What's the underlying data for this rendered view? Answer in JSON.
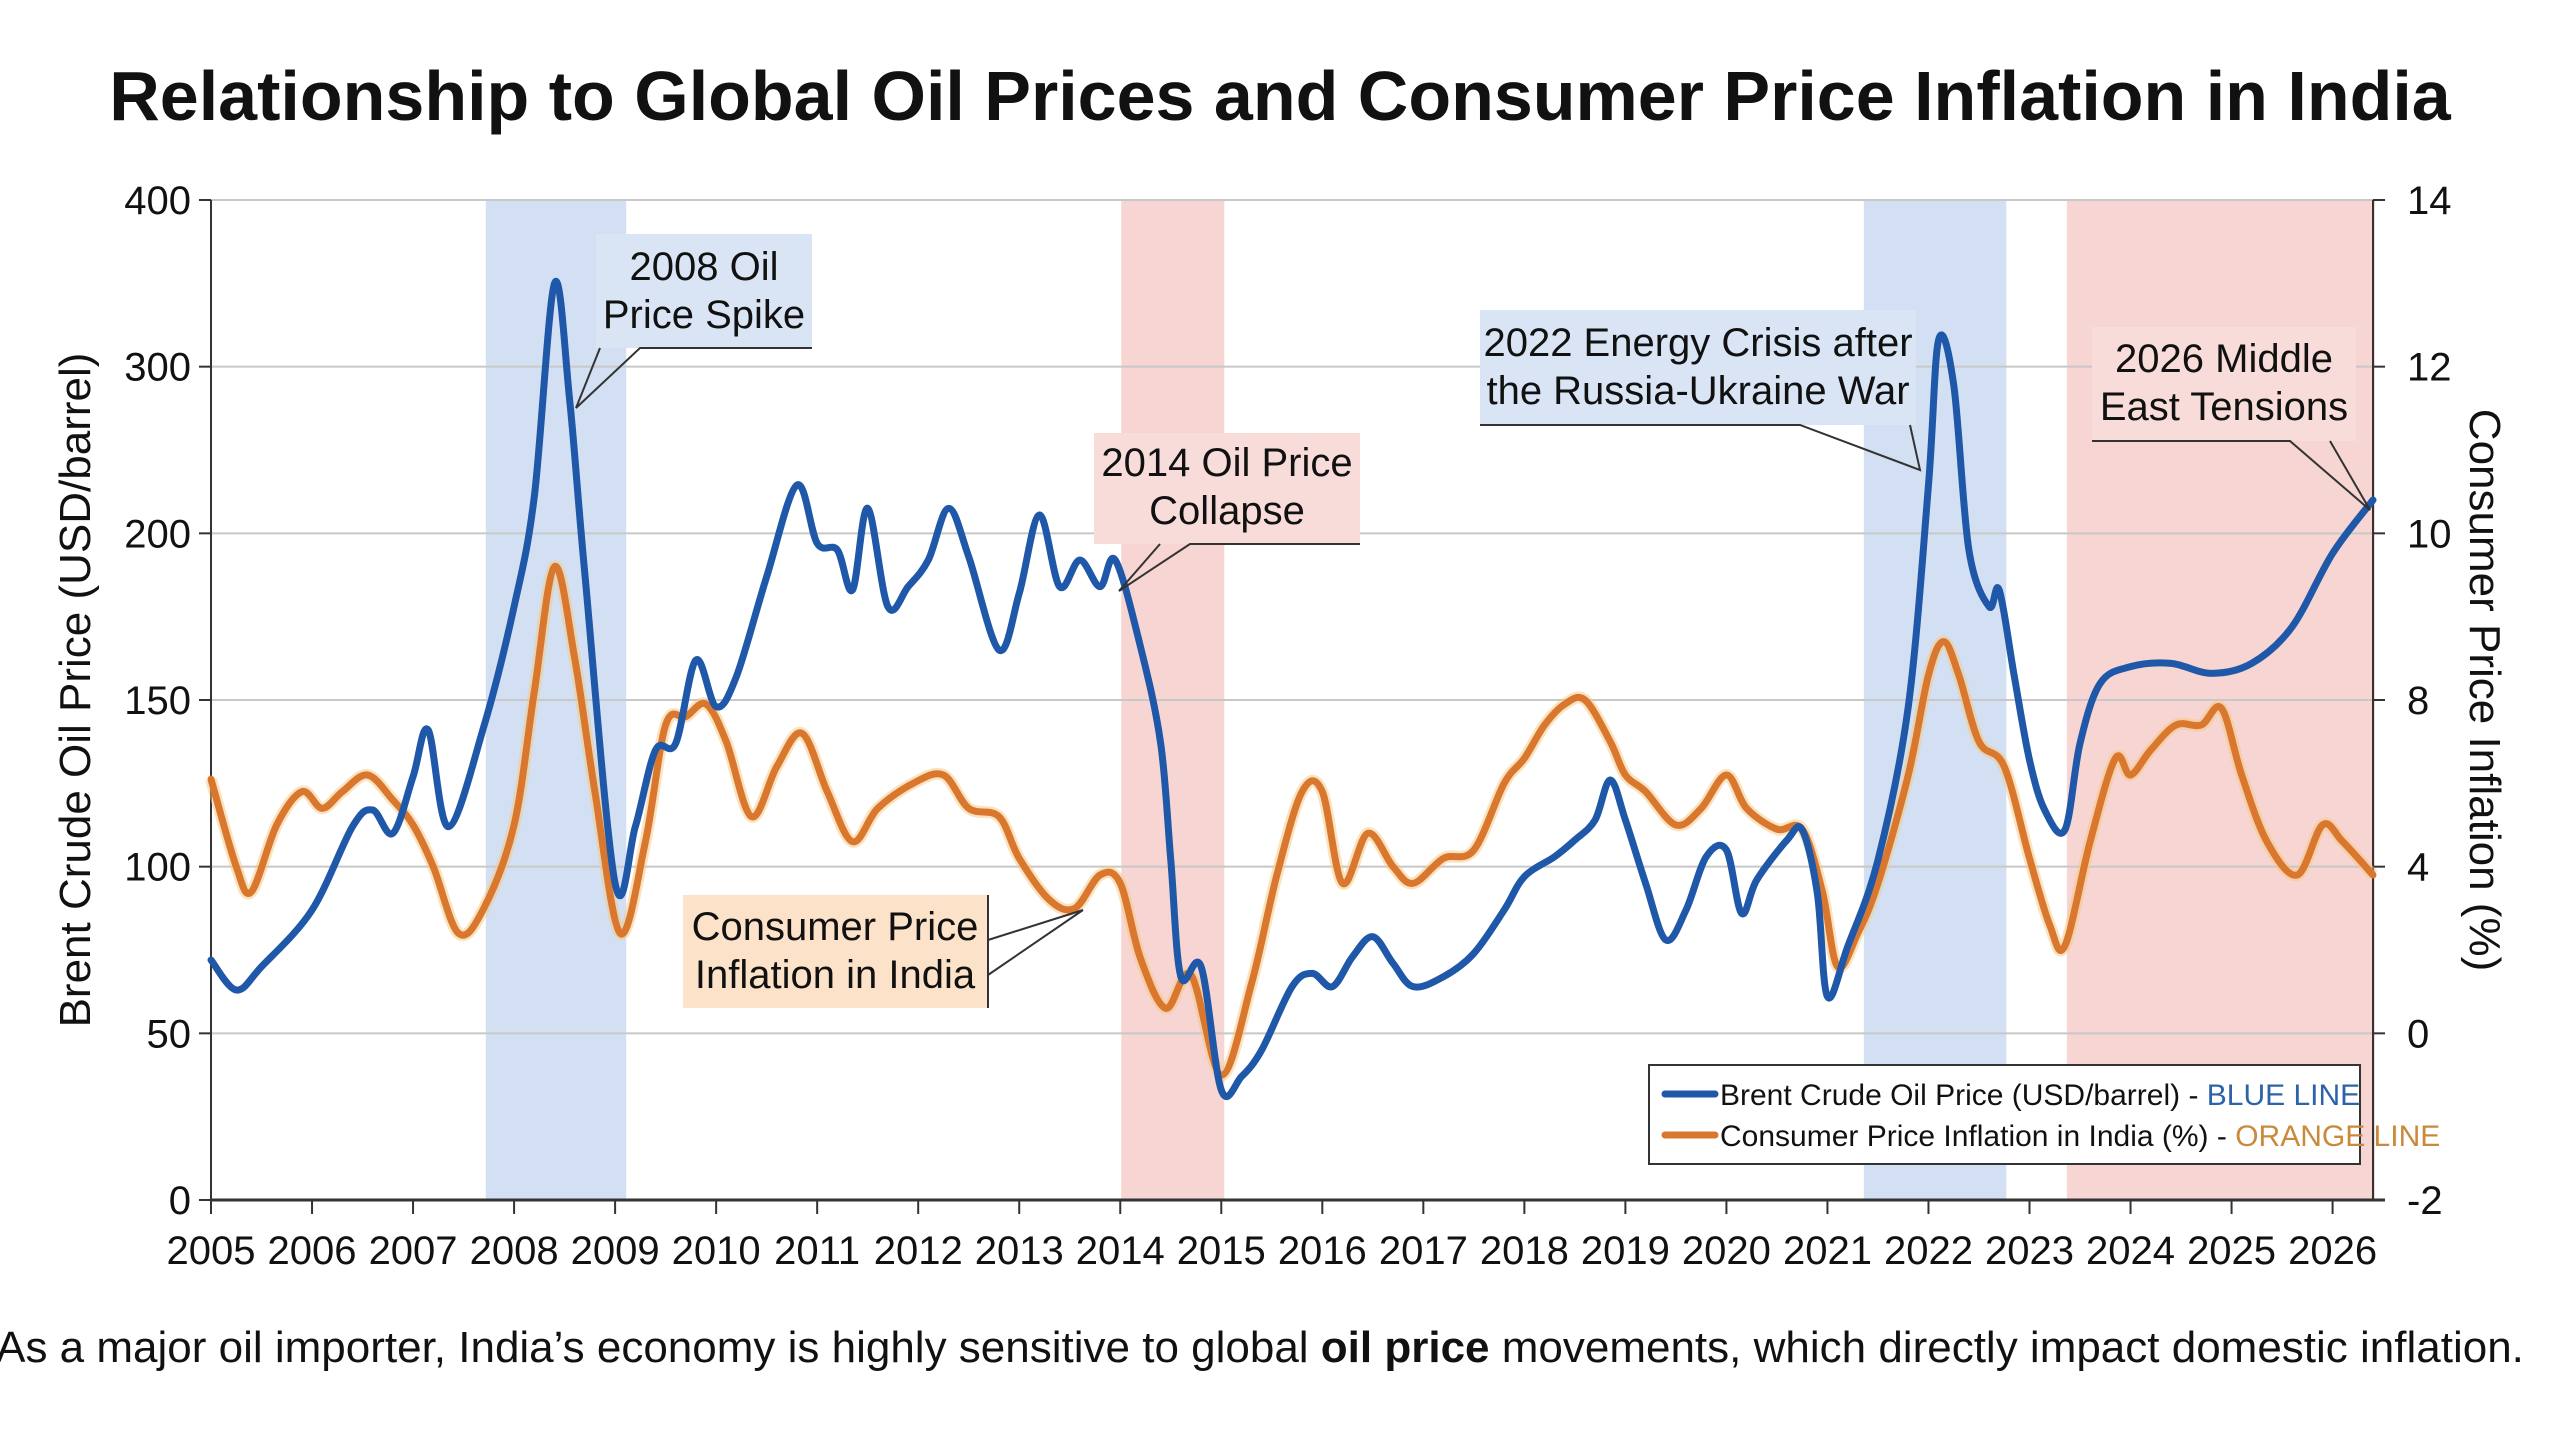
{
  "chart_data": {
    "type": "line",
    "title": "Relationship to Global Oil Prices and Consumer Price Inflation in India",
    "caption": {
      "before": "As a major oil importer, India’s economy is highly sensitive to global ",
      "bold": "oil price",
      "after": " movements, which directly impact domestic inflation."
    },
    "xlim": [
      2005,
      2026.4
    ],
    "x_ticks": [
      "2005",
      "2006",
      "2007",
      "2008",
      "2009",
      "2010",
      "2011",
      "2012",
      "2013",
      "2014",
      "2015",
      "2016",
      "2017",
      "2018",
      "2019",
      "2020",
      "2021",
      "2022",
      "2023",
      "2024",
      "2025",
      "2026"
    ],
    "y_left": {
      "label": "Brent Crude Oil Price (USD/barrel)",
      "ticks": [
        400,
        300,
        200,
        150,
        100,
        50,
        0
      ],
      "scale": "non-uniform (ticks evenly spaced)"
    },
    "y_right": {
      "label": "Consumer Price Inflation (%)",
      "ticks": [
        14,
        12,
        10,
        8,
        4,
        0,
        -2
      ],
      "scale": "non-uniform (ticks evenly spaced)"
    },
    "grid": true,
    "legend": {
      "placement": "bottom-right",
      "entries": [
        {
          "text": "Brent Crude Oil Price (USD/barrel) - ",
          "tag": "BLUE LINE"
        },
        {
          "text": "Consumer Price Inflation in India (%) - ",
          "tag": "ORANGE LINE"
        }
      ]
    },
    "colors": {
      "oil": "#1f58a8",
      "cpi": "#d9772f",
      "band_blue": "#d3e0f3",
      "band_red": "#f6d5d3",
      "ann_blue": "#d9e5f5",
      "ann_red": "#f8dcda",
      "ann_orange": "#fbe2c9"
    },
    "shaded_periods": [
      {
        "from": 2007.72,
        "to": 2009.11,
        "color": "blue"
      },
      {
        "from": 2014.01,
        "to": 2015.03,
        "color": "red"
      },
      {
        "from": 2021.36,
        "to": 2022.77,
        "color": "blue"
      },
      {
        "from": 2023.37,
        "to": 2026.42,
        "color": "red"
      }
    ],
    "annotations": [
      {
        "lines": [
          "2008 Oil",
          "Price Spike"
        ]
      },
      {
        "lines": [
          "2014 Oil Price",
          "Collapse"
        ]
      },
      {
        "lines": [
          "2022 Energy Crisis after",
          "the Russia-Ukraine War"
        ]
      },
      {
        "lines": [
          "2026 Middle",
          "East Tensions"
        ]
      },
      {
        "lines": [
          "Consumer Price",
          "Inflation in India"
        ]
      }
    ],
    "series": [
      {
        "name": "Brent Crude Oil Price (USD/barrel)",
        "axis": "left",
        "x": [
          2005.0,
          2005.25,
          2005.5,
          2006.0,
          2006.4,
          2006.6,
          2006.8,
          2007.0,
          2007.15,
          2007.35,
          2007.7,
          2008.0,
          2008.2,
          2008.4,
          2008.55,
          2008.7,
          2009.0,
          2009.2,
          2009.4,
          2009.6,
          2009.8,
          2010.0,
          2010.2,
          2010.5,
          2010.8,
          2011.0,
          2011.2,
          2011.35,
          2011.5,
          2011.7,
          2011.9,
          2012.1,
          2012.3,
          2012.5,
          2012.8,
          2013.0,
          2013.2,
          2013.4,
          2013.6,
          2013.8,
          2013.95,
          2014.2,
          2014.4,
          2014.5,
          2014.6,
          2014.8,
          2015.0,
          2015.2,
          2015.4,
          2015.7,
          2015.9,
          2016.1,
          2016.3,
          2016.5,
          2016.7,
          2016.9,
          2017.2,
          2017.5,
          2017.8,
          2018.0,
          2018.3,
          2018.5,
          2018.7,
          2018.85,
          2019.0,
          2019.2,
          2019.4,
          2019.6,
          2019.8,
          2020.0,
          2020.15,
          2020.3,
          2020.6,
          2020.75,
          2020.9,
          2021.0,
          2021.2,
          2021.5,
          2021.8,
          2022.0,
          2022.1,
          2022.25,
          2022.4,
          2022.6,
          2022.7,
          2022.85,
          2023.0,
          2023.15,
          2023.35,
          2023.5,
          2023.7,
          2024.0,
          2024.4,
          2024.8,
          2025.2,
          2025.6,
          2026.0,
          2026.4
        ],
        "y": [
          72,
          63,
          70,
          87,
          112,
          117,
          110,
          127,
          141,
          112,
          142,
          178,
          222,
          350,
          280,
          188,
          95,
          112,
          135,
          137,
          162,
          148,
          157,
          187,
          229,
          197,
          195,
          183,
          215,
          178,
          184,
          192,
          215,
          193,
          165,
          182,
          211,
          184,
          192,
          184,
          192,
          166,
          137,
          102,
          67,
          70,
          33,
          37,
          45,
          64,
          68,
          64,
          73,
          79,
          71,
          64,
          67,
          74,
          87,
          97,
          103,
          108,
          114,
          126,
          114,
          95,
          78,
          87,
          103,
          105,
          86,
          96,
          108,
          111,
          92,
          61,
          76,
          102,
          148,
          229,
          316,
          289,
          195,
          178,
          183,
          157,
          132,
          117,
          111,
          137,
          155,
          160,
          161,
          158,
          161,
          172,
          194,
          220
        ]
      },
      {
        "name": "Consumer Price Inflation in India (%)",
        "axis": "right",
        "x": [
          2005.0,
          2005.25,
          2005.4,
          2005.65,
          2005.9,
          2006.1,
          2006.3,
          2006.55,
          2006.8,
          2007.0,
          2007.2,
          2007.45,
          2007.7,
          2008.0,
          2008.2,
          2008.4,
          2008.6,
          2008.8,
          2009.05,
          2009.3,
          2009.5,
          2009.7,
          2009.9,
          2010.1,
          2010.35,
          2010.6,
          2010.85,
          2011.1,
          2011.35,
          2011.6,
          2011.95,
          2012.25,
          2012.5,
          2012.8,
          2013.0,
          2013.3,
          2013.55,
          2013.8,
          2014.0,
          2014.2,
          2014.45,
          2014.7,
          2015.0,
          2015.3,
          2015.55,
          2015.8,
          2016.0,
          2016.2,
          2016.45,
          2016.7,
          2016.9,
          2017.2,
          2017.5,
          2017.8,
          2018.0,
          2018.2,
          2018.4,
          2018.6,
          2018.85,
          2019.0,
          2019.2,
          2019.5,
          2019.75,
          2020.0,
          2020.2,
          2020.5,
          2020.75,
          2020.95,
          2021.1,
          2021.3,
          2021.5,
          2021.8,
          2022.0,
          2022.15,
          2022.3,
          2022.5,
          2022.75,
          2023.0,
          2023.2,
          2023.35,
          2023.6,
          2023.85,
          2024.0,
          2024.2,
          2024.45,
          2024.7,
          2024.9,
          2025.1,
          2025.35,
          2025.65,
          2025.9,
          2026.1,
          2026.4
        ],
        "y": [
          6.1,
          4.0,
          3.4,
          5.0,
          5.8,
          5.4,
          5.8,
          6.2,
          5.6,
          5.0,
          4.0,
          2.4,
          3.0,
          5.0,
          8.1,
          9.6,
          8.5,
          5.8,
          2.4,
          4.6,
          7.4,
          7.6,
          7.9,
          7.0,
          5.2,
          6.4,
          7.2,
          5.8,
          4.6,
          5.4,
          6.0,
          6.2,
          5.4,
          5.2,
          4.2,
          3.2,
          3.0,
          3.8,
          3.6,
          1.8,
          0.6,
          1.4,
          -0.5,
          1.2,
          3.8,
          5.8,
          5.8,
          3.6,
          4.8,
          4.0,
          3.6,
          4.2,
          4.4,
          6.0,
          6.6,
          7.4,
          7.9,
          8.0,
          7.0,
          6.2,
          5.8,
          5.0,
          5.4,
          6.2,
          5.4,
          4.9,
          4.9,
          3.4,
          1.6,
          2.4,
          3.6,
          6.2,
          8.3,
          8.7,
          8.3,
          7.0,
          6.4,
          4.2,
          2.6,
          2.1,
          4.6,
          6.6,
          6.2,
          6.8,
          7.4,
          7.4,
          7.8,
          6.2,
          4.6,
          3.8,
          5.0,
          4.6,
          3.8
        ]
      }
    ]
  }
}
